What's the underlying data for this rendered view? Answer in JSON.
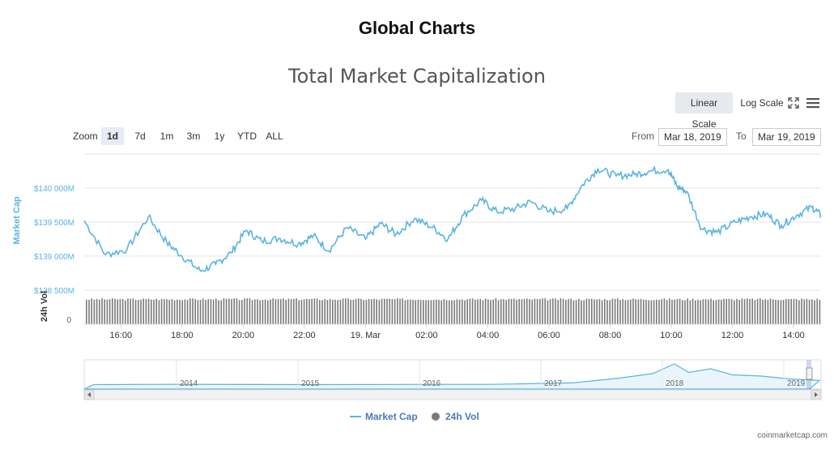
{
  "header": {
    "title": "Global Charts"
  },
  "toolbar": {
    "linear_label": "Linear Scale",
    "log_label": "Log Scale",
    "fullscreen_icon": "fullscreen-icon",
    "menu_icon": "hamburger-menu-icon"
  },
  "zoom": {
    "label": "Zoom",
    "buttons": [
      "1d",
      "7d",
      "1m",
      "3m",
      "1y",
      "YTD",
      "ALL"
    ],
    "active": "1d"
  },
  "range": {
    "from_label": "From",
    "from_value": "Mar 18, 2019",
    "to_label": "To",
    "to_value": "Mar 19, 2019"
  },
  "colors": {
    "market_cap": "#5ab4e0",
    "volume": "#7a7a7a",
    "active_btn": "#e6ebf5"
  },
  "legend": {
    "market_cap": "Market Cap",
    "volume": "24h Vol"
  },
  "credit": "coinmarketcap.com",
  "chart_data": {
    "type": "line",
    "title": "Total Market Capitalization",
    "ylabel": "Market Cap",
    "ylabel2": "24h Vol",
    "y_ticks": [
      "$138 500M",
      "$139 000M",
      "$139 500M",
      "$140 000M"
    ],
    "y_tick_values": [
      138500,
      139000,
      139500,
      140000
    ],
    "ylim": [
      138500,
      140500
    ],
    "vol_tick": "0",
    "x_ticks": [
      "16:00",
      "18:00",
      "20:00",
      "22:00",
      "19. Mar",
      "02:00",
      "04:00",
      "06:00",
      "08:00",
      "10:00",
      "12:00",
      "14:00"
    ],
    "xlim_hours": [
      14.8,
      38.9
    ],
    "grid": true,
    "legend_position": "bottom",
    "series": [
      {
        "name": "Market Cap",
        "x_hours": [
          14.8,
          15.5,
          16.2,
          16.9,
          17.5,
          18.0,
          18.6,
          19.1,
          19.6,
          20.1,
          20.6,
          21.2,
          21.8,
          22.3,
          22.8,
          23.4,
          24.0,
          24.5,
          25.0,
          25.6,
          26.2,
          26.7,
          27.2,
          27.8,
          28.3,
          28.9,
          29.4,
          30.0,
          30.6,
          31.1,
          31.6,
          32.2,
          32.8,
          33.3,
          33.9,
          34.2,
          34.5,
          35.0,
          35.5,
          36.1,
          36.6,
          37.1,
          37.6,
          38.1,
          38.6,
          38.9
        ],
        "values": [
          139520,
          139020,
          139100,
          139580,
          139200,
          139000,
          138780,
          138880,
          139050,
          139380,
          139220,
          139260,
          139180,
          139300,
          139080,
          139420,
          139250,
          139480,
          139320,
          139550,
          139420,
          139250,
          139600,
          139820,
          139650,
          139700,
          139800,
          139650,
          139700,
          140050,
          140280,
          140180,
          140200,
          140250,
          140270,
          140020,
          139950,
          139400,
          139350,
          139500,
          139580,
          139620,
          139450,
          139600,
          139720,
          139600
        ]
      },
      {
        "name": "24h Vol",
        "note_values": "approximately constant",
        "bar_values": [
          1
        ]
      }
    ],
    "navigator": {
      "years": [
        "2014",
        "2015",
        "2016",
        "2017",
        "2018",
        "2019"
      ]
    }
  }
}
